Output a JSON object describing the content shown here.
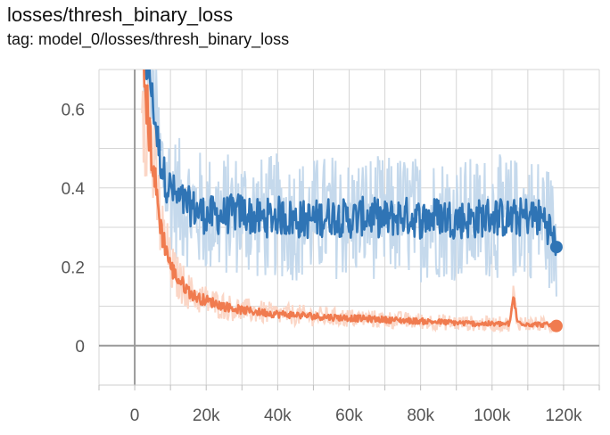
{
  "header": {
    "title": "losses/thresh_binary_loss",
    "tag": "tag: model_0/losses/thresh_binary_loss"
  },
  "chart_data": {
    "type": "line",
    "title": "losses/thresh_binary_loss",
    "subtitle": "tag: model_0/losses/thresh_binary_loss",
    "xlabel": "",
    "ylabel": "",
    "xlim": [
      -10000,
      130000
    ],
    "ylim": [
      -0.1,
      0.7
    ],
    "grid": true,
    "x_ticks": [
      0,
      20000,
      40000,
      60000,
      80000,
      100000,
      120000
    ],
    "x_tick_labels": [
      "0",
      "20k",
      "40k",
      "60k",
      "80k",
      "100k",
      "120k"
    ],
    "y_ticks": [
      0,
      0.2,
      0.4,
      0.6
    ],
    "y_tick_labels": [
      "0",
      "0.2",
      "0.4",
      "0.6"
    ],
    "series": [
      {
        "color": "#2f74b5",
        "raw_color": "#c5d9ec",
        "x": [
          2000,
          4000,
          5000,
          6000,
          7000,
          8000,
          9000,
          10000,
          12000,
          14000,
          16000,
          18000,
          20000,
          25000,
          30000,
          35000,
          40000,
          45000,
          50000,
          55000,
          60000,
          65000,
          70000,
          75000,
          80000,
          85000,
          90000,
          95000,
          100000,
          105000,
          110000,
          115000,
          118000
        ],
        "y": [
          0.72,
          0.7,
          0.62,
          0.55,
          0.48,
          0.44,
          0.41,
          0.4,
          0.37,
          0.36,
          0.35,
          0.34,
          0.33,
          0.33,
          0.34,
          0.32,
          0.33,
          0.32,
          0.32,
          0.33,
          0.32,
          0.33,
          0.32,
          0.33,
          0.32,
          0.33,
          0.32,
          0.32,
          0.33,
          0.32,
          0.33,
          0.32,
          0.25
        ]
      },
      {
        "color": "#f07b4f",
        "raw_color": "#fbd6c6",
        "x": [
          2000,
          3000,
          4000,
          5000,
          6000,
          7000,
          8000,
          9000,
          10000,
          12000,
          14000,
          16000,
          18000,
          20000,
          25000,
          30000,
          35000,
          40000,
          45000,
          50000,
          55000,
          60000,
          65000,
          70000,
          75000,
          80000,
          85000,
          90000,
          95000,
          100000,
          105000,
          106000,
          107000,
          110000,
          115000,
          118000
        ],
        "y": [
          0.72,
          0.65,
          0.55,
          0.47,
          0.39,
          0.32,
          0.27,
          0.24,
          0.2,
          0.17,
          0.15,
          0.13,
          0.12,
          0.115,
          0.1,
          0.09,
          0.085,
          0.08,
          0.078,
          0.075,
          0.072,
          0.07,
          0.068,
          0.066,
          0.064,
          0.062,
          0.06,
          0.058,
          0.056,
          0.055,
          0.055,
          0.13,
          0.06,
          0.055,
          0.053,
          0.05
        ]
      }
    ]
  }
}
